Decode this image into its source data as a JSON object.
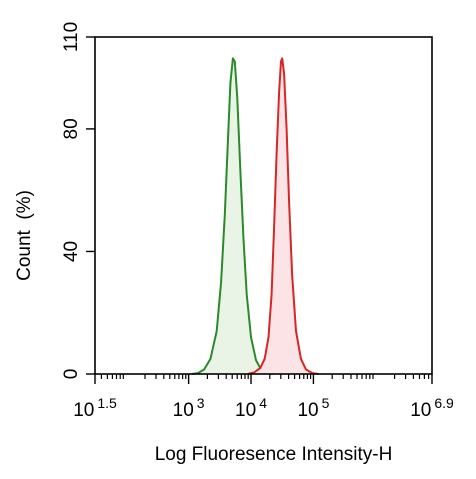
{
  "chart_data": {
    "type": "area",
    "title": "",
    "xlabel": "Log Fluoresence Intensity-H",
    "ylabel": "Count  (%)",
    "x_scale": "log10",
    "xlim_log10": [
      1.5,
      6.9
    ],
    "ylim": [
      0,
      110
    ],
    "yticks": [
      0,
      40,
      80,
      110
    ],
    "xticks": [
      {
        "base": "10",
        "exp": "1.5",
        "log10": 1.5
      },
      {
        "base": "10",
        "exp": "3",
        "log10": 3
      },
      {
        "base": "10",
        "exp": "4",
        "log10": 4
      },
      {
        "base": "10",
        "exp": "5",
        "log10": 5
      },
      {
        "base": "10",
        "exp": "6.9",
        "log10": 6.9
      }
    ],
    "grid": false,
    "legend": "none",
    "series": [
      {
        "color": "#2a8a2a",
        "fill": "#eaf4e6",
        "points": [
          [
            3.05,
            0
          ],
          [
            3.15,
            0.3
          ],
          [
            3.25,
            1.5
          ],
          [
            3.35,
            5
          ],
          [
            3.45,
            14
          ],
          [
            3.52,
            30
          ],
          [
            3.58,
            52
          ],
          [
            3.63,
            76
          ],
          [
            3.67,
            95
          ],
          [
            3.71,
            103
          ],
          [
            3.74,
            102
          ],
          [
            3.78,
            90
          ],
          [
            3.83,
            66
          ],
          [
            3.88,
            44
          ],
          [
            3.93,
            26
          ],
          [
            4.0,
            12
          ],
          [
            4.08,
            4.5
          ],
          [
            4.16,
            1.5
          ],
          [
            4.25,
            0.3
          ],
          [
            4.35,
            0
          ]
        ]
      },
      {
        "color": "#d62626",
        "fill": "#fbe3e6",
        "points": [
          [
            3.95,
            0
          ],
          [
            4.05,
            0.5
          ],
          [
            4.15,
            2
          ],
          [
            4.22,
            5
          ],
          [
            4.28,
            12
          ],
          [
            4.33,
            26
          ],
          [
            4.37,
            48
          ],
          [
            4.41,
            72
          ],
          [
            4.45,
            92
          ],
          [
            4.48,
            102
          ],
          [
            4.5,
            103
          ],
          [
            4.53,
            98
          ],
          [
            4.57,
            80
          ],
          [
            4.61,
            56
          ],
          [
            4.66,
            32
          ],
          [
            4.72,
            14
          ],
          [
            4.8,
            5
          ],
          [
            4.88,
            1.5
          ],
          [
            4.98,
            0.3
          ],
          [
            5.08,
            0
          ]
        ]
      }
    ]
  }
}
